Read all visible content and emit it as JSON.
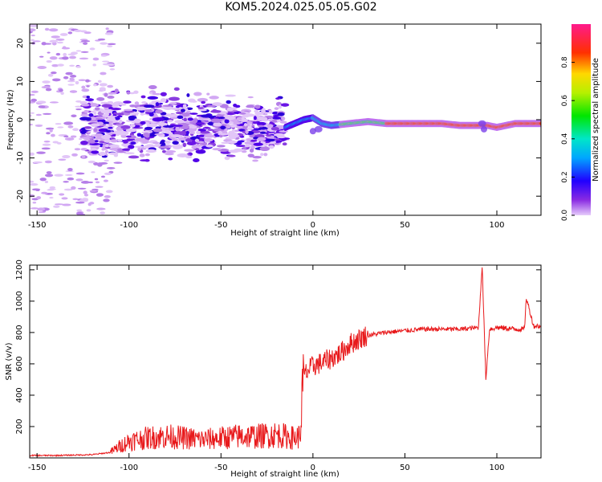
{
  "title": "KOM5.2024.025.05.05.G02",
  "colors": {
    "spectrum_low": "#d8b6f2",
    "spectrum_mid": "#5500e8",
    "snr_line": "#e8191b",
    "axis": "#000000"
  },
  "chart_data": [
    {
      "type": "heatmap",
      "title": "KOM5.2024.025.05.05.G02",
      "xlabel": "Height of straight line (km)",
      "ylabel": "Frequency (Hz)",
      "xlim": [
        -154,
        124
      ],
      "ylim": [
        -25,
        25
      ],
      "xticks": [
        -150,
        -100,
        -50,
        0,
        50,
        100
      ],
      "yticks": [
        -20,
        -10,
        0,
        10,
        20
      ],
      "colorbar": {
        "label": "Normalized spectral amplitude",
        "range": [
          0,
          1
        ],
        "ticks": [
          "0.0",
          "0.2",
          "0.4",
          "0.6",
          "0.8"
        ],
        "colormap": "rainbow (violet-blue-cyan-green-yellow-red-magenta)"
      },
      "ridge_after_0km": {
        "x": [
          -15,
          -10,
          -5,
          0,
          5,
          10,
          20,
          30,
          40,
          50,
          60,
          70,
          80,
          90,
          95,
          100,
          110,
          124
        ],
        "freq_hz": [
          -2,
          -1,
          0,
          0.5,
          -1,
          -1.5,
          -1,
          -0.5,
          -1,
          -1,
          -1,
          -1,
          -1.5,
          -1.5,
          -1.5,
          -2,
          -1,
          -1
        ]
      }
    },
    {
      "type": "line",
      "xlabel": "Height of straight line (km)",
      "ylabel": "SNR (v/v)",
      "xlim": [
        -154,
        124
      ],
      "ylim": [
        0,
        1230
      ],
      "xticks": [
        -150,
        -100,
        -50,
        0,
        50,
        100
      ],
      "yticks": [
        200,
        400,
        600,
        800,
        1000,
        1200
      ],
      "series": [
        {
          "x": [
            -154,
            -140,
            -120,
            -110,
            -105,
            -100,
            -90,
            -80,
            -70,
            -60,
            -50,
            -40,
            -30,
            -20,
            -15,
            -10,
            -7,
            -5,
            0,
            5,
            10,
            15,
            20,
            25,
            30,
            40,
            50,
            60,
            70,
            80,
            90,
            92,
            94,
            96,
            100,
            110,
            115,
            116,
            120,
            124
          ],
          "y": [
            15,
            15,
            20,
            35,
            70,
            100,
            120,
            130,
            120,
            110,
            120,
            130,
            130,
            140,
            130,
            120,
            130,
            520,
            580,
            600,
            630,
            660,
            720,
            750,
            780,
            800,
            810,
            820,
            820,
            820,
            830,
            1230,
            500,
            820,
            830,
            820,
            820,
            1020,
            840,
            840
          ]
        }
      ]
    }
  ]
}
